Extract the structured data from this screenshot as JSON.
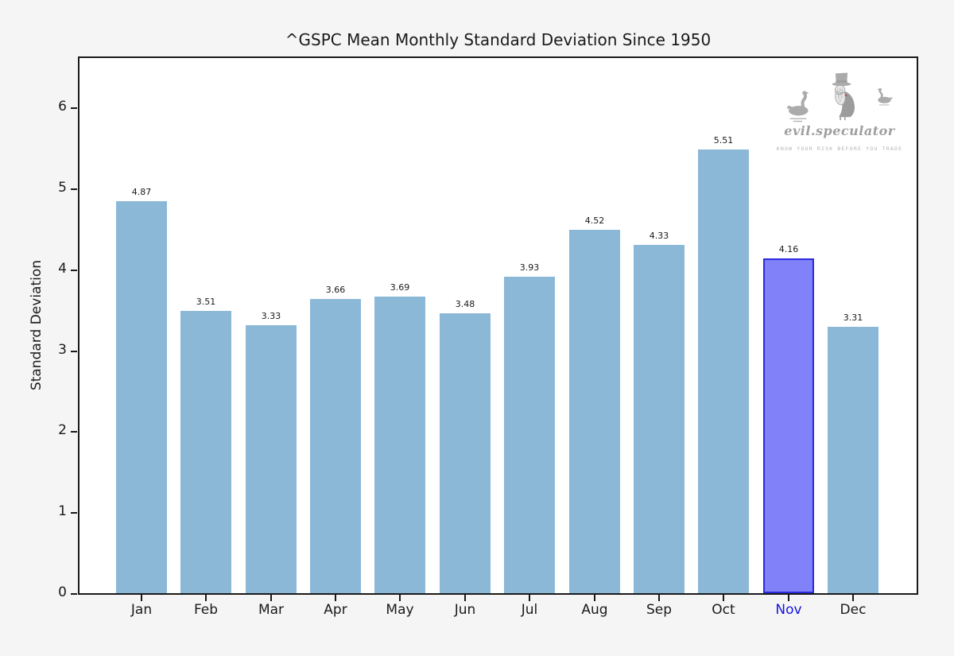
{
  "figure": {
    "background": "#f5f5f5",
    "plot_background": "#ffffff",
    "spine_color": "#1a1a1a",
    "text_color": "#1a1a1a"
  },
  "chart_data": {
    "type": "bar",
    "title": "^GSPC Mean Monthly Standard Deviation Since 1950",
    "xlabel": "",
    "ylabel": "Standard Deviation",
    "categories": [
      "Jan",
      "Feb",
      "Mar",
      "Apr",
      "May",
      "Jun",
      "Jul",
      "Aug",
      "Sep",
      "Oct",
      "Nov",
      "Dec"
    ],
    "values": [
      4.87,
      3.51,
      3.33,
      3.66,
      3.69,
      3.48,
      3.93,
      4.52,
      4.33,
      5.51,
      4.16,
      3.31
    ],
    "ylim": [
      0,
      6.65
    ],
    "yticks": [
      0,
      1,
      2,
      3,
      4,
      5,
      6
    ],
    "grid": false,
    "legend": null,
    "bar_color": "#8cb8d8",
    "highlight": {
      "category": "Nov",
      "index": 10,
      "bar_color": "#8181fa",
      "bar_border_color": "#2b2be0",
      "tick_label_color": "#1414e0"
    }
  },
  "logo": {
    "brand": "evil.speculator",
    "tagline": "KNOW YOUR RISK BEFORE YOU TRADE",
    "color": "#ababab"
  }
}
